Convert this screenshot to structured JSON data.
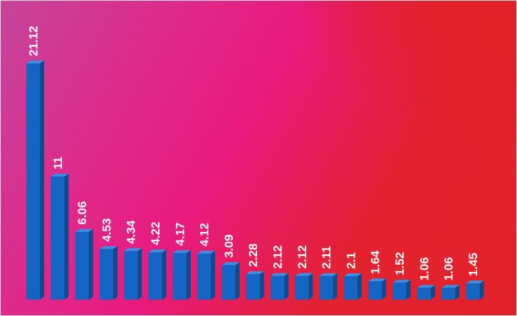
{
  "chart_data": {
    "type": "bar",
    "title": "",
    "xlabel": "",
    "ylabel": "",
    "grid": false,
    "values": [
      21.12,
      11,
      6.06,
      4.53,
      4.34,
      4.22,
      4.17,
      4.12,
      3.09,
      2.28,
      2.12,
      2.12,
      2.11,
      2.1,
      1.64,
      1.52,
      1.06,
      1.06,
      1.45
    ],
    "data_labels": [
      "21.12",
      "11",
      "6.06",
      "4.53",
      "4.34",
      "4.22",
      "4.17",
      "4.12",
      "3.09",
      "2.28",
      "2.12",
      "2.12",
      "2.11",
      "2.1",
      "1.64",
      "1.52",
      "1.06",
      "1.06",
      "1.45"
    ],
    "colors": {
      "bar_front": "#1565c4",
      "bar_side": "#0c4a92",
      "bar_top": "#3d8de0",
      "label": "#ffffff",
      "background_primary": "#e32129",
      "background_secondary": "#e81a7e"
    }
  }
}
